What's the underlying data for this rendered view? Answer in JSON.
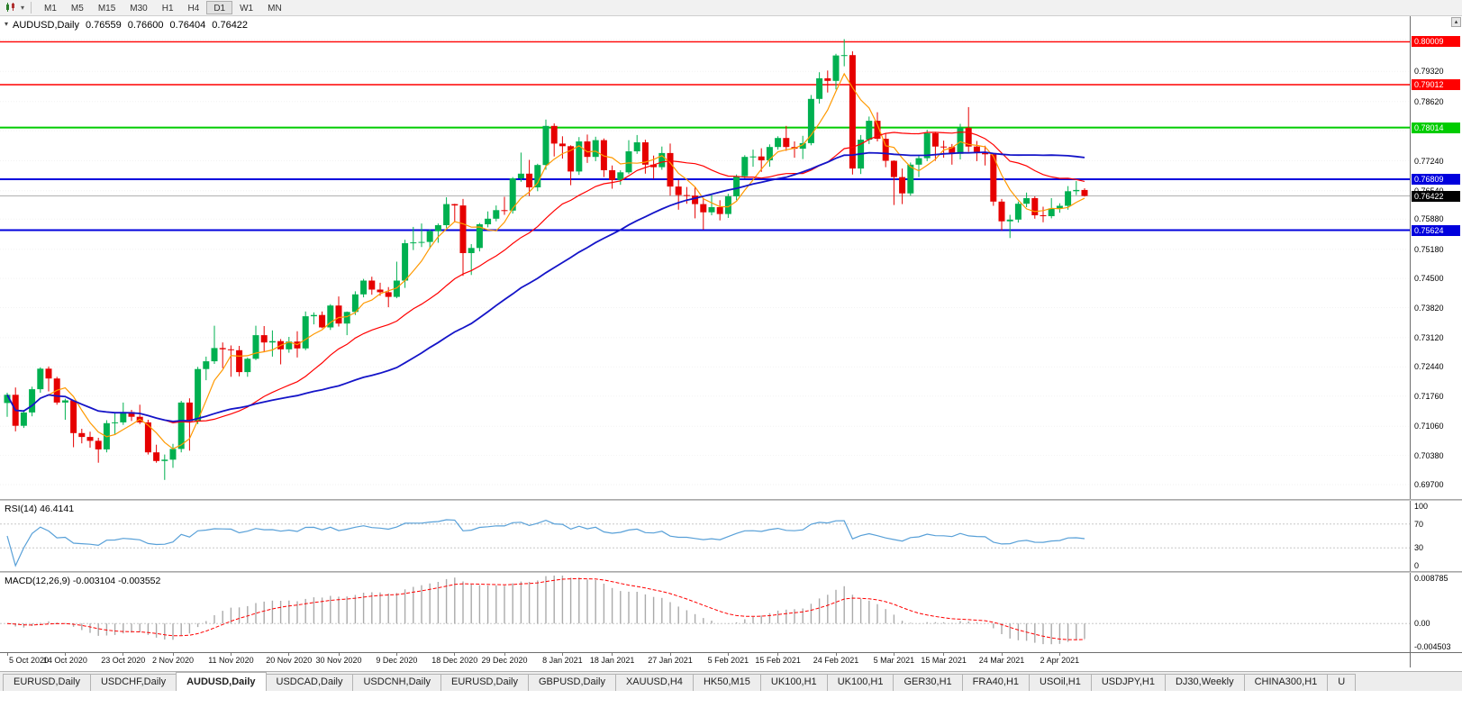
{
  "toolbar": {
    "timeframes": [
      {
        "label": "M1",
        "active": false
      },
      {
        "label": "M5",
        "active": false
      },
      {
        "label": "M15",
        "active": false
      },
      {
        "label": "M30",
        "active": false
      },
      {
        "label": "H1",
        "active": false
      },
      {
        "label": "H4",
        "active": false
      },
      {
        "label": "D1",
        "active": true
      },
      {
        "label": "W1",
        "active": false
      },
      {
        "label": "MN",
        "active": false
      }
    ]
  },
  "chart_title": {
    "symbol": "AUDUSD,Daily",
    "open": "0.76559",
    "high": "0.76600",
    "low": "0.76404",
    "close": "0.76422"
  },
  "indicators": {
    "rsi": {
      "label": "RSI(14) 46.4141",
      "period": 14,
      "value": 46.4141,
      "levels": [
        100,
        70,
        30,
        0
      ],
      "line_color": "#58a0d8"
    },
    "macd": {
      "label": "MACD(12,26,9) -0.003104 -0.003552",
      "fast": 12,
      "slow": 26,
      "signal": 9,
      "macd_value": -0.003104,
      "signal_value": -0.003552,
      "axis_labels": [
        "0.008785",
        "0.00",
        "-0.004503"
      ],
      "vmax": 0.008785,
      "vmin": -0.004503,
      "hist_color": "#aaaaaa",
      "signal_color": "#ff0000"
    }
  },
  "chart_data": {
    "type": "candlestick",
    "symbol": "AUDUSD",
    "timeframe": "Daily",
    "up_color": "#00b050",
    "down_color": "#e60000",
    "price_axis": {
      "labels": [
        "0.80060",
        "0.79320",
        "0.78620",
        "0.77940",
        "0.77240",
        "0.76540",
        "0.75880",
        "0.75180",
        "0.74500",
        "0.73820",
        "0.73120",
        "0.72440",
        "0.71760",
        "0.71060",
        "0.70380",
        "0.69700"
      ],
      "top_price": 0.8006,
      "bottom_price": 0.697
    },
    "hlines": [
      {
        "price": 0.80009,
        "label": "0.80009",
        "color": "#ff0000",
        "width": 1.4
      },
      {
        "price": 0.79012,
        "label": "0.79012",
        "color": "#ff0000",
        "width": 1.4
      },
      {
        "price": 0.78014,
        "label": "0.78014",
        "color": "#00cc00",
        "width": 2
      },
      {
        "price": 0.76809,
        "label": "0.76809",
        "color": "#0000dd",
        "width": 2
      },
      {
        "price": 0.75624,
        "label": "0.75624",
        "color": "#0000dd",
        "width": 2
      }
    ],
    "bid_line": {
      "price": 0.76422,
      "label": "0.76422",
      "color": "#b0b0b0",
      "badge_bg": "#000000"
    },
    "moving_averages": [
      {
        "period": 5,
        "color": "#ff9900",
        "width": 1.2
      },
      {
        "period": 20,
        "color": "#ff0000",
        "width": 1.2
      },
      {
        "period": 40,
        "color": "#1414c8",
        "width": 1.8
      }
    ],
    "date_labels": [
      {
        "i": 0,
        "label": "5 Oct 2020"
      },
      {
        "i": 7,
        "label": "14 Oct 2020"
      },
      {
        "i": 14,
        "label": "23 Oct 2020"
      },
      {
        "i": 20,
        "label": "2 Nov 2020"
      },
      {
        "i": 27,
        "label": "11 Nov 2020"
      },
      {
        "i": 34,
        "label": "20 Nov 2020"
      },
      {
        "i": 40,
        "label": "30 Nov 2020"
      },
      {
        "i": 47,
        "label": "9 Dec 2020"
      },
      {
        "i": 54,
        "label": "18 Dec 2020"
      },
      {
        "i": 60,
        "label": "29 Dec 2020"
      },
      {
        "i": 67,
        "label": "8 Jan 2021"
      },
      {
        "i": 73,
        "label": "18 Jan 2021"
      },
      {
        "i": 80,
        "label": "27 Jan 2021"
      },
      {
        "i": 87,
        "label": "5 Feb 2021"
      },
      {
        "i": 93,
        "label": "15 Feb 2021"
      },
      {
        "i": 100,
        "label": "24 Feb 2021"
      },
      {
        "i": 107,
        "label": "5 Mar 2021"
      },
      {
        "i": 113,
        "label": "15 Mar 2021"
      },
      {
        "i": 120,
        "label": "24 Mar 2021"
      },
      {
        "i": 127,
        "label": "2 Apr 2021"
      }
    ],
    "ohlc": [
      [
        0.716,
        0.7184,
        0.7128,
        0.7179
      ],
      [
        0.7179,
        0.7196,
        0.7094,
        0.7107
      ],
      [
        0.7107,
        0.7144,
        0.7102,
        0.7138
      ],
      [
        0.7138,
        0.7198,
        0.7129,
        0.7192
      ],
      [
        0.7192,
        0.7243,
        0.7184,
        0.724
      ],
      [
        0.724,
        0.7245,
        0.7187,
        0.7217
      ],
      [
        0.7217,
        0.7221,
        0.7156,
        0.7161
      ],
      [
        0.7161,
        0.717,
        0.7121,
        0.7166
      ],
      [
        0.7166,
        0.7167,
        0.7057,
        0.709
      ],
      [
        0.709,
        0.71,
        0.7066,
        0.7081
      ],
      [
        0.7081,
        0.7093,
        0.7056,
        0.7072
      ],
      [
        0.7072,
        0.7079,
        0.7021,
        0.7052
      ],
      [
        0.7052,
        0.712,
        0.7045,
        0.7113
      ],
      [
        0.7113,
        0.7138,
        0.7086,
        0.7115
      ],
      [
        0.7115,
        0.7161,
        0.7109,
        0.7139
      ],
      [
        0.7139,
        0.7144,
        0.7118,
        0.7128
      ],
      [
        0.7128,
        0.7156,
        0.7111,
        0.7115
      ],
      [
        0.7115,
        0.7121,
        0.704,
        0.7045
      ],
      [
        0.7045,
        0.7063,
        0.7021,
        0.7025
      ],
      [
        0.7025,
        0.704,
        0.6981,
        0.7028
      ],
      [
        0.7028,
        0.7065,
        0.7009,
        0.7053
      ],
      [
        0.7053,
        0.7165,
        0.7045,
        0.7161
      ],
      [
        0.7161,
        0.7171,
        0.7049,
        0.7118
      ],
      [
        0.7118,
        0.7244,
        0.7111,
        0.7239
      ],
      [
        0.7239,
        0.7268,
        0.7213,
        0.7257
      ],
      [
        0.7257,
        0.734,
        0.7251,
        0.7288
      ],
      [
        0.7288,
        0.7301,
        0.7241,
        0.7285
      ],
      [
        0.7285,
        0.7294,
        0.7221,
        0.7283
      ],
      [
        0.7283,
        0.7293,
        0.7222,
        0.7232
      ],
      [
        0.7232,
        0.7266,
        0.7221,
        0.7263
      ],
      [
        0.7263,
        0.734,
        0.726,
        0.7318
      ],
      [
        0.7318,
        0.7339,
        0.7278,
        0.7301
      ],
      [
        0.7301,
        0.7329,
        0.7268,
        0.7304
      ],
      [
        0.7304,
        0.7309,
        0.725,
        0.7285
      ],
      [
        0.7285,
        0.7314,
        0.7277,
        0.7303
      ],
      [
        0.7303,
        0.7327,
        0.7266,
        0.7287
      ],
      [
        0.7287,
        0.7373,
        0.7283,
        0.7362
      ],
      [
        0.7362,
        0.7371,
        0.7343,
        0.7365
      ],
      [
        0.7365,
        0.7373,
        0.7334,
        0.7336
      ],
      [
        0.7336,
        0.739,
        0.733,
        0.7387
      ],
      [
        0.7387,
        0.7408,
        0.7338,
        0.7345
      ],
      [
        0.7345,
        0.7373,
        0.7318,
        0.7372
      ],
      [
        0.7372,
        0.742,
        0.7365,
        0.7413
      ],
      [
        0.7413,
        0.7449,
        0.7406,
        0.7445
      ],
      [
        0.7445,
        0.7454,
        0.7412,
        0.7424
      ],
      [
        0.7424,
        0.744,
        0.741,
        0.7418
      ],
      [
        0.7418,
        0.743,
        0.7383,
        0.7407
      ],
      [
        0.7407,
        0.7489,
        0.7404,
        0.7445
      ],
      [
        0.7445,
        0.754,
        0.7428,
        0.7532
      ],
      [
        0.7532,
        0.757,
        0.7516,
        0.7534
      ],
      [
        0.7534,
        0.7578,
        0.7523,
        0.7535
      ],
      [
        0.7535,
        0.7564,
        0.752,
        0.756
      ],
      [
        0.756,
        0.7578,
        0.7533,
        0.7574
      ],
      [
        0.7574,
        0.7639,
        0.7567,
        0.7623
      ],
      [
        0.7623,
        0.7624,
        0.7581,
        0.762
      ],
      [
        0.762,
        0.7635,
        0.7456,
        0.7509
      ],
      [
        0.7509,
        0.753,
        0.7458,
        0.7521
      ],
      [
        0.7521,
        0.7579,
        0.7513,
        0.7576
      ],
      [
        0.7576,
        0.7606,
        0.7569,
        0.7589
      ],
      [
        0.7589,
        0.762,
        0.7583,
        0.7609
      ],
      [
        0.7609,
        0.764,
        0.7598,
        0.7608
      ],
      [
        0.7608,
        0.7686,
        0.7601,
        0.7683
      ],
      [
        0.7683,
        0.7743,
        0.7675,
        0.7694
      ],
      [
        0.7694,
        0.7726,
        0.7642,
        0.7662
      ],
      [
        0.7662,
        0.7717,
        0.7653,
        0.7714
      ],
      [
        0.7714,
        0.782,
        0.7703,
        0.7805
      ],
      [
        0.7805,
        0.7811,
        0.7734,
        0.7764
      ],
      [
        0.7764,
        0.7781,
        0.7729,
        0.7758
      ],
      [
        0.7758,
        0.776,
        0.7667,
        0.7699
      ],
      [
        0.7699,
        0.7779,
        0.7691,
        0.7769
      ],
      [
        0.7769,
        0.7785,
        0.7719,
        0.7733
      ],
      [
        0.7733,
        0.778,
        0.7723,
        0.7772
      ],
      [
        0.7772,
        0.7776,
        0.7686,
        0.7702
      ],
      [
        0.7702,
        0.7713,
        0.7659,
        0.7679
      ],
      [
        0.7679,
        0.7702,
        0.7668,
        0.7697
      ],
      [
        0.7697,
        0.7772,
        0.7693,
        0.7746
      ],
      [
        0.7746,
        0.7784,
        0.774,
        0.7767
      ],
      [
        0.7767,
        0.7773,
        0.7694,
        0.7715
      ],
      [
        0.7715,
        0.7736,
        0.7682,
        0.7709
      ],
      [
        0.7709,
        0.7757,
        0.7703,
        0.7742
      ],
      [
        0.7742,
        0.7764,
        0.7643,
        0.7664
      ],
      [
        0.7664,
        0.7679,
        0.761,
        0.7644
      ],
      [
        0.7644,
        0.7663,
        0.7624,
        0.7643
      ],
      [
        0.7643,
        0.7663,
        0.759,
        0.7623
      ],
      [
        0.7623,
        0.7635,
        0.7564,
        0.7604
      ],
      [
        0.7604,
        0.7644,
        0.7597,
        0.7616
      ],
      [
        0.7616,
        0.7632,
        0.7585,
        0.76
      ],
      [
        0.76,
        0.7647,
        0.7591,
        0.7641
      ],
      [
        0.7641,
        0.7692,
        0.7632,
        0.7688
      ],
      [
        0.7688,
        0.7737,
        0.7683,
        0.7733
      ],
      [
        0.7733,
        0.775,
        0.771,
        0.7734
      ],
      [
        0.7734,
        0.7753,
        0.7698,
        0.7725
      ],
      [
        0.7725,
        0.7762,
        0.771,
        0.7756
      ],
      [
        0.7756,
        0.7781,
        0.775,
        0.7777
      ],
      [
        0.7777,
        0.7805,
        0.7747,
        0.7756
      ],
      [
        0.7756,
        0.7769,
        0.7731,
        0.7752
      ],
      [
        0.7752,
        0.7782,
        0.7728,
        0.7765
      ],
      [
        0.7765,
        0.7877,
        0.776,
        0.7868
      ],
      [
        0.7868,
        0.793,
        0.7857,
        0.7916
      ],
      [
        0.7916,
        0.7934,
        0.7883,
        0.791
      ],
      [
        0.791,
        0.7973,
        0.789,
        0.7969
      ],
      [
        0.7969,
        0.8007,
        0.7944,
        0.797
      ],
      [
        0.797,
        0.7979,
        0.7692,
        0.7706
      ],
      [
        0.7706,
        0.7784,
        0.7693,
        0.7773
      ],
      [
        0.7773,
        0.7827,
        0.7763,
        0.7817
      ],
      [
        0.7817,
        0.7837,
        0.7769,
        0.7775
      ],
      [
        0.7775,
        0.7789,
        0.7709,
        0.7724
      ],
      [
        0.7724,
        0.7725,
        0.7621,
        0.7686
      ],
      [
        0.7686,
        0.7706,
        0.7623,
        0.7648
      ],
      [
        0.7648,
        0.772,
        0.7643,
        0.7715
      ],
      [
        0.7715,
        0.7736,
        0.7686,
        0.773
      ],
      [
        0.773,
        0.7796,
        0.7723,
        0.7788
      ],
      [
        0.7788,
        0.779,
        0.7724,
        0.7757
      ],
      [
        0.7757,
        0.7771,
        0.7731,
        0.7756
      ],
      [
        0.7756,
        0.7763,
        0.7715,
        0.774
      ],
      [
        0.774,
        0.781,
        0.7727,
        0.7801
      ],
      [
        0.7801,
        0.7849,
        0.7745,
        0.7757
      ],
      [
        0.7757,
        0.777,
        0.7723,
        0.7745
      ],
      [
        0.7745,
        0.7759,
        0.7713,
        0.7739
      ],
      [
        0.7739,
        0.7741,
        0.7619,
        0.7629
      ],
      [
        0.7629,
        0.7635,
        0.7562,
        0.7583
      ],
      [
        0.7583,
        0.7598,
        0.7544,
        0.7587
      ],
      [
        0.7587,
        0.7629,
        0.758,
        0.7624
      ],
      [
        0.7624,
        0.765,
        0.7616,
        0.7637
      ],
      [
        0.7637,
        0.7641,
        0.7589,
        0.7597
      ],
      [
        0.7597,
        0.7617,
        0.7581,
        0.7595
      ],
      [
        0.7595,
        0.7637,
        0.759,
        0.7613
      ],
      [
        0.7613,
        0.7625,
        0.7603,
        0.7619
      ],
      [
        0.7619,
        0.7665,
        0.761,
        0.7653
      ],
      [
        0.7653,
        0.7677,
        0.7644,
        0.7656
      ],
      [
        0.76559,
        0.766,
        0.76404,
        0.76422
      ]
    ]
  },
  "tabs": [
    {
      "label": "EURUSD,Daily",
      "active": false
    },
    {
      "label": "USDCHF,Daily",
      "active": false
    },
    {
      "label": "AUDUSD,Daily",
      "active": true
    },
    {
      "label": "USDCAD,Daily",
      "active": false
    },
    {
      "label": "USDCNH,Daily",
      "active": false
    },
    {
      "label": "EURUSD,Daily",
      "active": false
    },
    {
      "label": "GBPUSD,Daily",
      "active": false
    },
    {
      "label": "XAUUSD,H4",
      "active": false
    },
    {
      "label": "HK50,M15",
      "active": false
    },
    {
      "label": "UK100,H1",
      "active": false
    },
    {
      "label": "UK100,H1",
      "active": false
    },
    {
      "label": "GER30,H1",
      "active": false
    },
    {
      "label": "FRA40,H1",
      "active": false
    },
    {
      "label": "USOil,H1",
      "active": false
    },
    {
      "label": "USDJPY,H1",
      "active": false
    },
    {
      "label": "DJ30,Weekly",
      "active": false
    },
    {
      "label": "CHINA300,H1",
      "active": false
    },
    {
      "label": "U",
      "active": false
    }
  ]
}
